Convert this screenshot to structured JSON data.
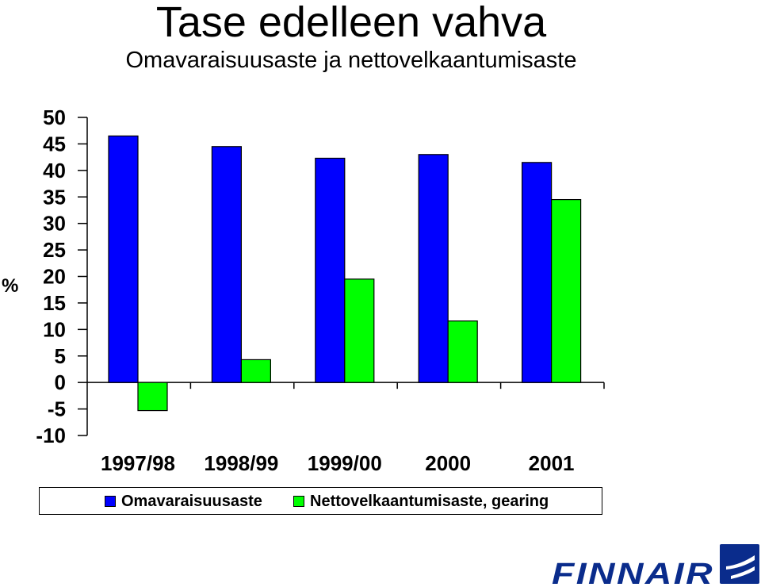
{
  "header": {
    "title": "Tase edelleen vahva",
    "subtitle": "Omavaraisuusaste ja nettovelkaantumisaste"
  },
  "chart_data": {
    "type": "bar",
    "categories": [
      "1997/98",
      "1998/99",
      "1999/00",
      "2000",
      "2001"
    ],
    "series": [
      {
        "name": "Omavaraisuusaste",
        "color": "#0000ff",
        "values": [
          46.5,
          44.5,
          42.3,
          43.0,
          41.5
        ]
      },
      {
        "name": "Nettovelkaantumisaste, gearing",
        "color": "#00ff00",
        "values": [
          -5.3,
          4.3,
          19.5,
          11.6,
          34.5
        ]
      }
    ],
    "ylabel": "%",
    "ylim": [
      -10,
      50
    ],
    "yticks": [
      50,
      45,
      40,
      35,
      30,
      25,
      20,
      15,
      10,
      5,
      0,
      -5,
      -10
    ],
    "grid": false,
    "legend_position": "bottom"
  },
  "logo": {
    "text": "FINNAIR",
    "color": "#0a2c8c"
  }
}
